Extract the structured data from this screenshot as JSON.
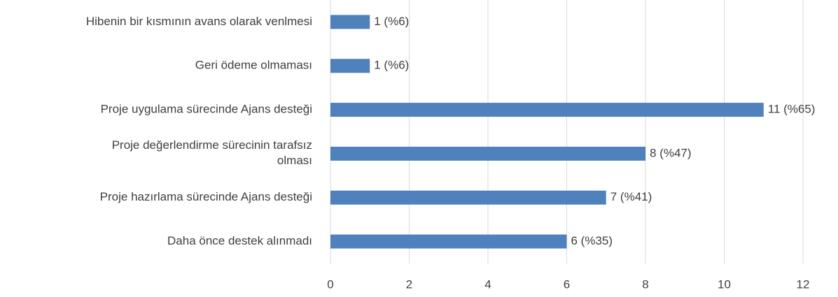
{
  "chart_data": {
    "type": "barh",
    "categories": [
      "Hibenin bir kısmının avans olarak venlmesi",
      "Geri ödeme olmaması",
      "Proje uygulama sürecinde Ajans desteği",
      "Proje değerlendirme sürecinin tarafsız olması",
      "Proje hazırlama sürecinde Ajans desteği",
      "Daha önce destek alınmadı"
    ],
    "values": [
      1,
      1,
      11,
      8,
      7,
      6
    ],
    "value_labels": [
      "1 (%6)",
      "1 (%6)",
      "11 (%65)",
      "8 (%47)",
      "7 (%41)",
      "6 (%35)"
    ],
    "color": "#4f81bd",
    "xlim": [
      0,
      12
    ],
    "xticks": [
      0,
      2,
      4,
      6,
      8,
      10,
      12
    ],
    "grid": true
  }
}
